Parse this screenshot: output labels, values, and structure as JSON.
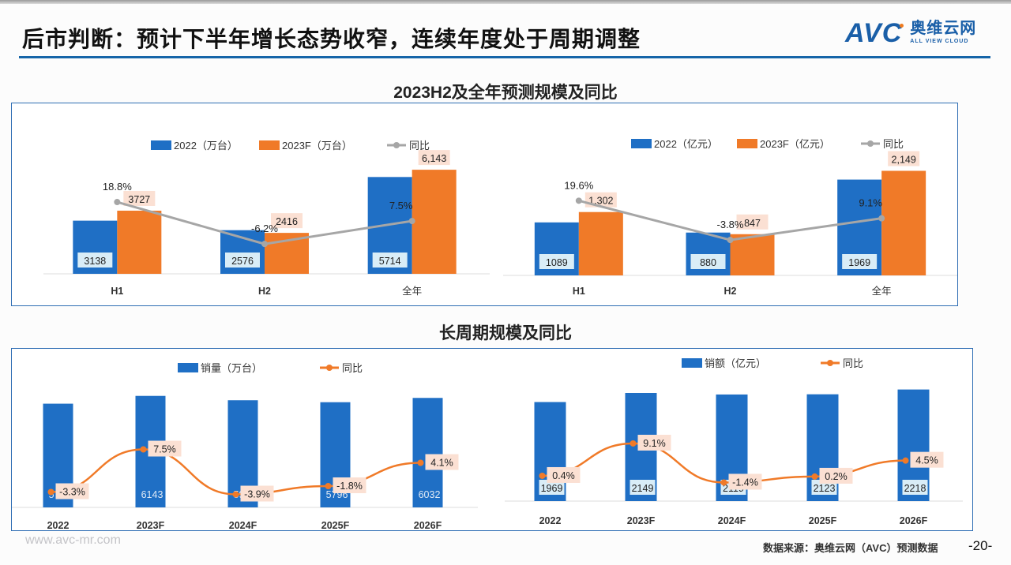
{
  "header": {
    "title": "后市判断：预计下半年增长态势收窄，连续年度处于周期调整",
    "logo_mark": "AVC",
    "logo_cn": "奥维云网",
    "logo_en": "ALL VIEW CLOUD"
  },
  "sections": {
    "top_title": "2023H2及全年预测规模及同比",
    "bottom_title": "长周期规模及同比"
  },
  "footer": {
    "url": "www.avc-mr.com",
    "source": "数据来源：奥维云网（AVC）预测数据",
    "page": "-20-"
  },
  "colors": {
    "blue": "#1f6fc5",
    "orange": "#f07a28",
    "gray_line": "#a6a6a6",
    "label_box_blue": "#d9edf7",
    "label_box_orange": "#fbe0d3"
  },
  "chart_data": [
    {
      "type": "bar",
      "id": "h-volume",
      "categories": [
        "H1",
        "H2",
        "全年"
      ],
      "series": [
        {
          "name": "2022（万台）",
          "values": [
            3138,
            2576,
            5714
          ],
          "labels": [
            "3138",
            "2576",
            "5714"
          ]
        },
        {
          "name": "2023F（万台）",
          "values": [
            3727,
            2416,
            6143
          ],
          "labels": [
            "3727",
            "2416",
            "6,143"
          ]
        }
      ],
      "line": {
        "name": "同比",
        "values": [
          18.8,
          -6.2,
          7.5
        ],
        "labels": [
          "18.8%",
          "-6.2%",
          "7.5%"
        ]
      },
      "legend": [
        "2022（万台）",
        "2023F（万台）",
        "同比"
      ],
      "legend_position": "top",
      "ylim": [
        0,
        6800
      ],
      "line_ylim": [
        -40,
        40
      ],
      "grid": false
    },
    {
      "type": "bar",
      "id": "h-revenue",
      "categories": [
        "H1",
        "H2",
        "全年"
      ],
      "series": [
        {
          "name": "2022（亿元）",
          "values": [
            1089,
            880,
            1969
          ],
          "labels": [
            "1089",
            "880",
            "1969"
          ]
        },
        {
          "name": "2023F（亿元）",
          "values": [
            1302,
            847,
            2149
          ],
          "labels": [
            "1,302",
            "847",
            "2,149"
          ]
        }
      ],
      "line": {
        "name": "同比",
        "values": [
          19.6,
          -3.8,
          9.1
        ],
        "labels": [
          "19.6%",
          "-3.8%",
          "9.1%"
        ]
      },
      "legend": [
        "2022（亿元）",
        "2023F（亿元）",
        "同比"
      ],
      "legend_position": "top",
      "ylim": [
        0,
        2400
      ],
      "line_ylim": [
        -40,
        40
      ],
      "grid": false
    },
    {
      "type": "bar",
      "id": "long-volume",
      "categories": [
        "2022",
        "2023F",
        "2024F",
        "2025F",
        "2026F"
      ],
      "series": [
        {
          "name": "销量（万台）",
          "values": [
            5714,
            6143,
            5903,
            5796,
            6032
          ],
          "labels": [
            "5714",
            "6143",
            "5903",
            "5796",
            "6032"
          ]
        }
      ],
      "line": {
        "name": "同比",
        "values": [
          -3.3,
          7.5,
          -3.9,
          -1.8,
          4.1
        ],
        "labels": [
          "-3.3%",
          "7.5%",
          "-3.9%",
          "-1.8%",
          "4.1%"
        ]
      },
      "legend": [
        "销量（万台）",
        "同比"
      ],
      "legend_position": "top",
      "ylim": [
        0,
        7000
      ],
      "line_ylim": [
        -10,
        25
      ],
      "grid": false
    },
    {
      "type": "bar",
      "id": "long-revenue",
      "categories": [
        "2022",
        "2023F",
        "2024F",
        "2025F",
        "2026F"
      ],
      "series": [
        {
          "name": "销额（亿元）",
          "values": [
            1969,
            2149,
            2119,
            2123,
            2218
          ],
          "labels": [
            "1969",
            "2149",
            "2119",
            "2123",
            "2218"
          ]
        }
      ],
      "line": {
        "name": "同比",
        "values": [
          0.4,
          9.1,
          -1.4,
          0.2,
          4.5
        ],
        "labels": [
          "0.4%",
          "9.1%",
          "-1.4%",
          "0.2%",
          "4.5%"
        ]
      },
      "legend": [
        "销额（亿元）",
        "同比"
      ],
      "legend_position": "top",
      "ylim": [
        0,
        2400
      ],
      "line_ylim": [
        -10,
        25
      ],
      "grid": false
    }
  ]
}
